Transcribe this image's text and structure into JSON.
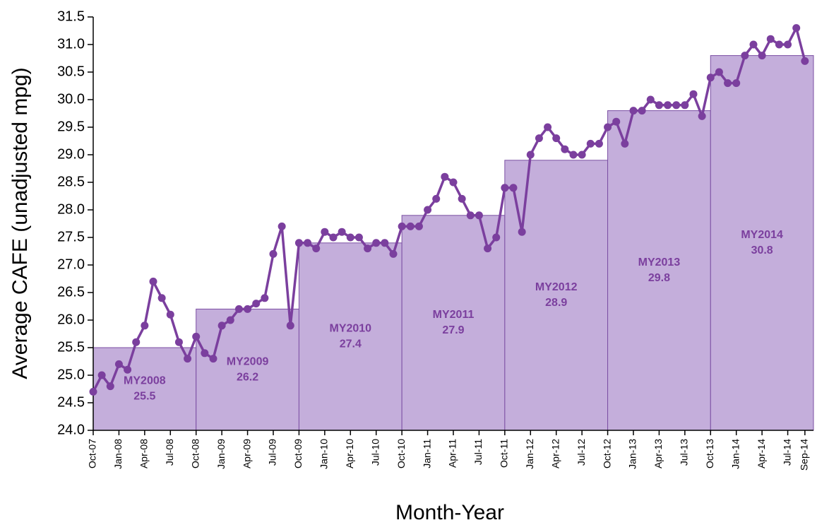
{
  "chart_data": {
    "type": "combo",
    "x_label": "Month-Year",
    "y_label": "Average CAFE (unadjusted mpg)",
    "categories": [
      "Oct-07",
      null,
      null,
      "Jan-08",
      null,
      null,
      "Apr-08",
      null,
      null,
      "Jul-08",
      null,
      null,
      "Oct-08",
      null,
      null,
      "Jan-09",
      null,
      null,
      "Apr-09",
      null,
      null,
      "Jul-09",
      null,
      null,
      "Oct-09",
      null,
      null,
      "Jan-10",
      null,
      null,
      "Apr-10",
      null,
      null,
      "Jul-10",
      null,
      null,
      "Oct-10",
      null,
      null,
      "Jan-11",
      null,
      null,
      "Apr-11",
      null,
      null,
      "Jul-11",
      null,
      null,
      "Oct-11",
      null,
      null,
      "Jan-12",
      null,
      null,
      "Apr-12",
      null,
      null,
      "Jul-12",
      null,
      null,
      "Oct-12",
      null,
      null,
      "Jan-13",
      null,
      null,
      "Apr-13",
      null,
      null,
      "Jul-13",
      null,
      null,
      "Oct-13",
      null,
      null,
      "Jan-14",
      null,
      null,
      "Apr-14",
      null,
      null,
      "Jul-14",
      null,
      "Sep-14"
    ],
    "line": {
      "color": "#7b3f9e",
      "values": [
        24.7,
        25.0,
        24.8,
        25.2,
        25.1,
        25.6,
        25.9,
        26.7,
        26.4,
        26.1,
        25.6,
        25.3,
        25.7,
        25.4,
        25.3,
        25.9,
        26.0,
        26.2,
        26.2,
        26.3,
        26.4,
        27.2,
        27.7,
        25.9,
        27.4,
        27.4,
        27.3,
        27.6,
        27.5,
        27.6,
        27.5,
        27.5,
        27.3,
        27.4,
        27.4,
        27.2,
        27.7,
        27.7,
        27.7,
        28.0,
        28.2,
        28.6,
        28.5,
        28.2,
        27.9,
        27.9,
        27.3,
        27.5,
        28.4,
        28.4,
        27.6,
        29.0,
        29.3,
        29.5,
        29.3,
        29.1,
        29.0,
        29.0,
        29.2,
        29.2,
        29.5,
        29.6,
        29.2,
        29.8,
        29.8,
        30.0,
        29.9,
        29.9,
        29.9,
        29.9,
        30.1,
        29.7,
        30.4,
        30.5,
        30.3,
        30.3,
        30.8,
        31.0,
        30.8,
        31.1,
        31.0,
        31.0,
        31.3,
        30.7
      ]
    },
    "bars": {
      "color": "#c4aedb",
      "edge_color": "#7b4fa3",
      "label_color": "#7b3f9e",
      "labels": [
        "MY2008",
        "MY2009",
        "MY2010",
        "MY2011",
        "MY2012",
        "MY2013",
        "MY2014"
      ],
      "values": [
        25.5,
        26.2,
        27.4,
        27.9,
        28.9,
        29.8,
        30.8
      ]
    },
    "ylim": [
      24.0,
      31.5
    ],
    "yticks": [
      {
        "value": 24,
        "label": "24.0"
      },
      24.5,
      {
        "value": 25,
        "label": "25.0"
      },
      25.5,
      {
        "value": 26,
        "label": "26.0"
      },
      26.5,
      {
        "value": 27,
        "label": "27.0"
      },
      27.5,
      {
        "value": 28,
        "label": "28.0"
      },
      28.5,
      {
        "value": 29,
        "label": "29.0"
      },
      29.5,
      {
        "value": 30,
        "label": "30.0"
      },
      30.5,
      {
        "value": 31,
        "label": "31.0"
      },
      31.5
    ]
  }
}
